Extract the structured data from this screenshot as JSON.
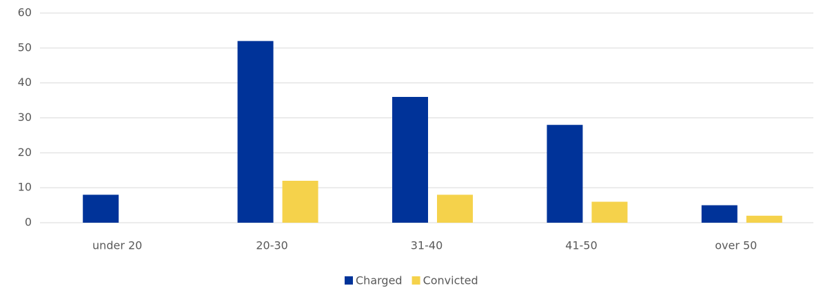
{
  "chart_data": {
    "type": "bar",
    "categories": [
      "under 20",
      "20-30",
      "31-40",
      "41-50",
      "over 50"
    ],
    "series": [
      {
        "name": "Charged",
        "color": "#003399",
        "values": [
          8,
          52,
          36,
          28,
          5
        ]
      },
      {
        "name": "Convicted",
        "color": "#f5d24b",
        "values": [
          0,
          12,
          8,
          6,
          2
        ]
      }
    ],
    "ylim": [
      0,
      60
    ],
    "yticks": [
      0,
      10,
      20,
      30,
      40,
      50,
      60
    ],
    "grid": true,
    "legend": "bottom"
  }
}
